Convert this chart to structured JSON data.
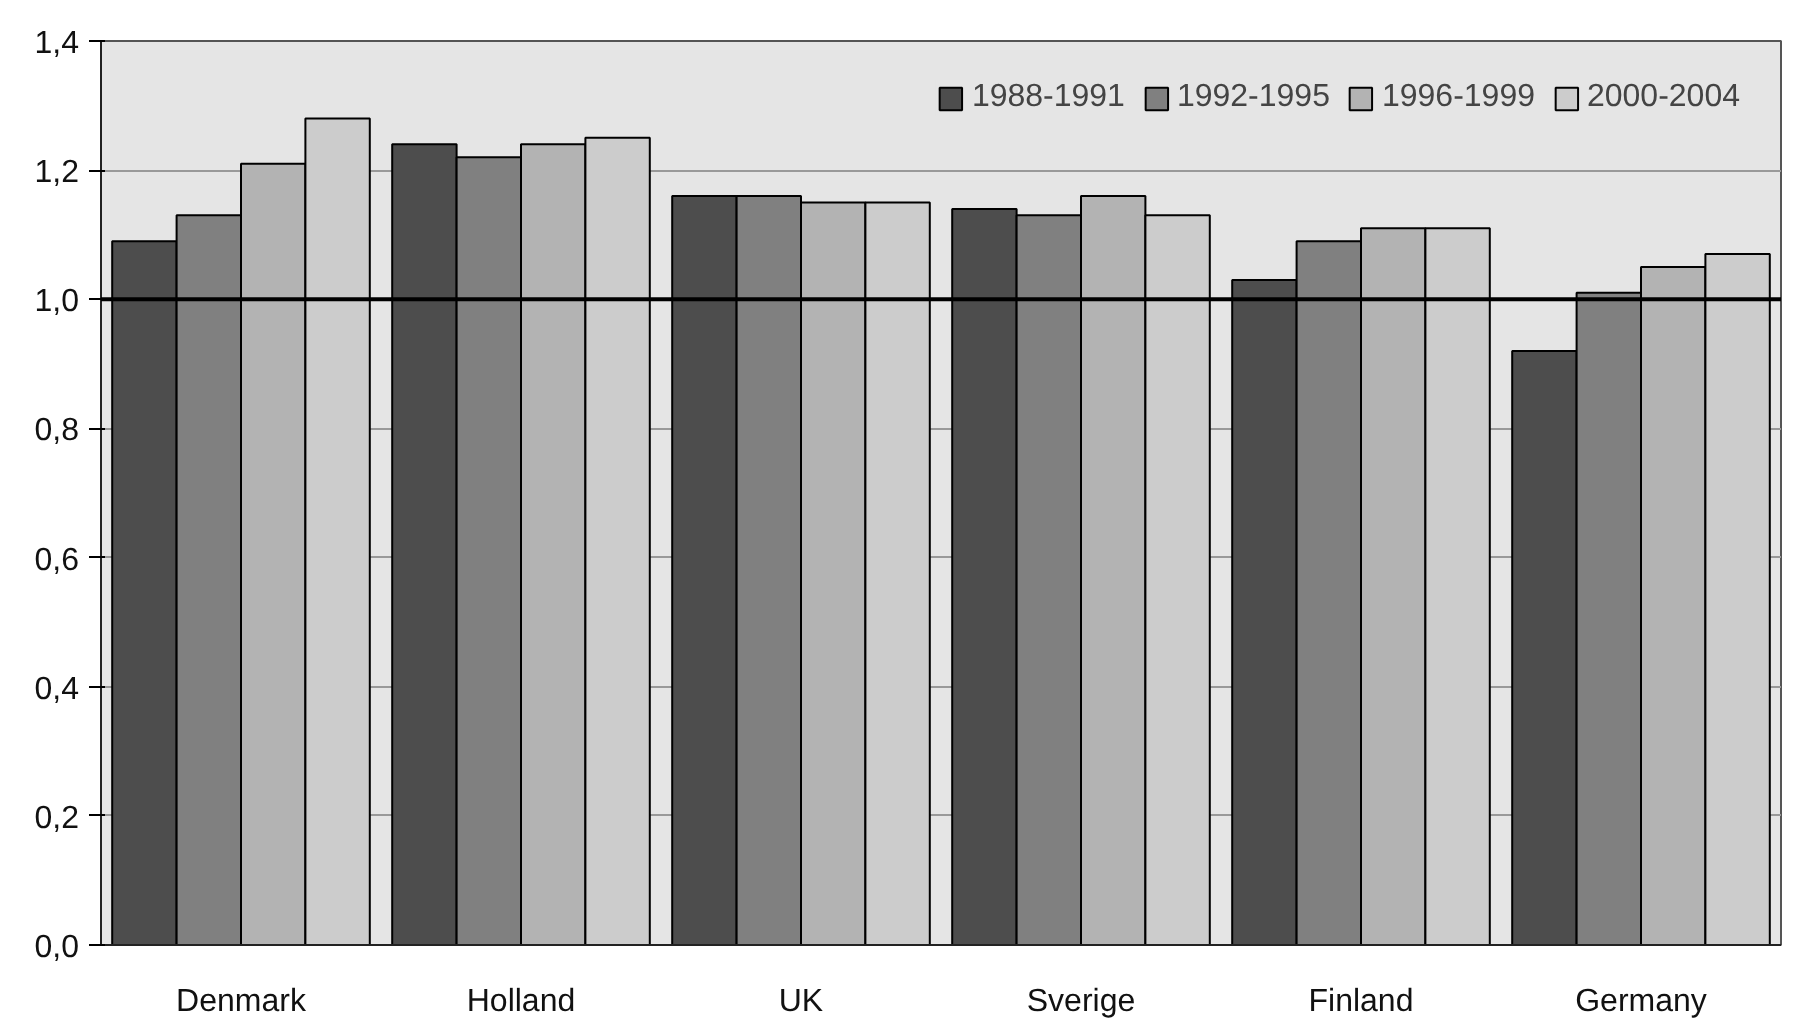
{
  "chart_data": {
    "type": "bar",
    "categories": [
      "Denmark",
      "Holland",
      "UK",
      "Sverige",
      "Finland",
      "Germany"
    ],
    "series": [
      {
        "name": "1988-1991",
        "color": "#4d4d4d",
        "values": [
          1.09,
          1.24,
          1.16,
          1.14,
          1.03,
          0.92
        ]
      },
      {
        "name": "1992-1995",
        "color": "#808080",
        "values": [
          1.13,
          1.22,
          1.16,
          1.13,
          1.09,
          1.01
        ]
      },
      {
        "name": "1996-1999",
        "color": "#b3b3b3",
        "values": [
          1.21,
          1.24,
          1.15,
          1.16,
          1.11,
          1.05
        ]
      },
      {
        "name": "2000-2004",
        "color": "#cccccc",
        "values": [
          1.28,
          1.25,
          1.15,
          1.13,
          1.11,
          1.07
        ]
      }
    ],
    "ylim": [
      0,
      1.4
    ],
    "yticks": [
      {
        "value": 0,
        "label": "0,0"
      },
      {
        "value": 0.2,
        "label": "0,2"
      },
      {
        "value": 0.4,
        "label": "0,4"
      },
      {
        "value": 0.6,
        "label": "0,6"
      },
      {
        "value": 0.8,
        "label": "0,8"
      },
      {
        "value": 1.0,
        "label": "1,0"
      },
      {
        "value": 1.2,
        "label": "1,2"
      },
      {
        "value": 1.4,
        "label": "1,4"
      }
    ],
    "grid": "y",
    "legend": "top right",
    "ref_lines": [
      {
        "axis": "y",
        "value": 1.0,
        "color": "#000000"
      }
    ]
  }
}
